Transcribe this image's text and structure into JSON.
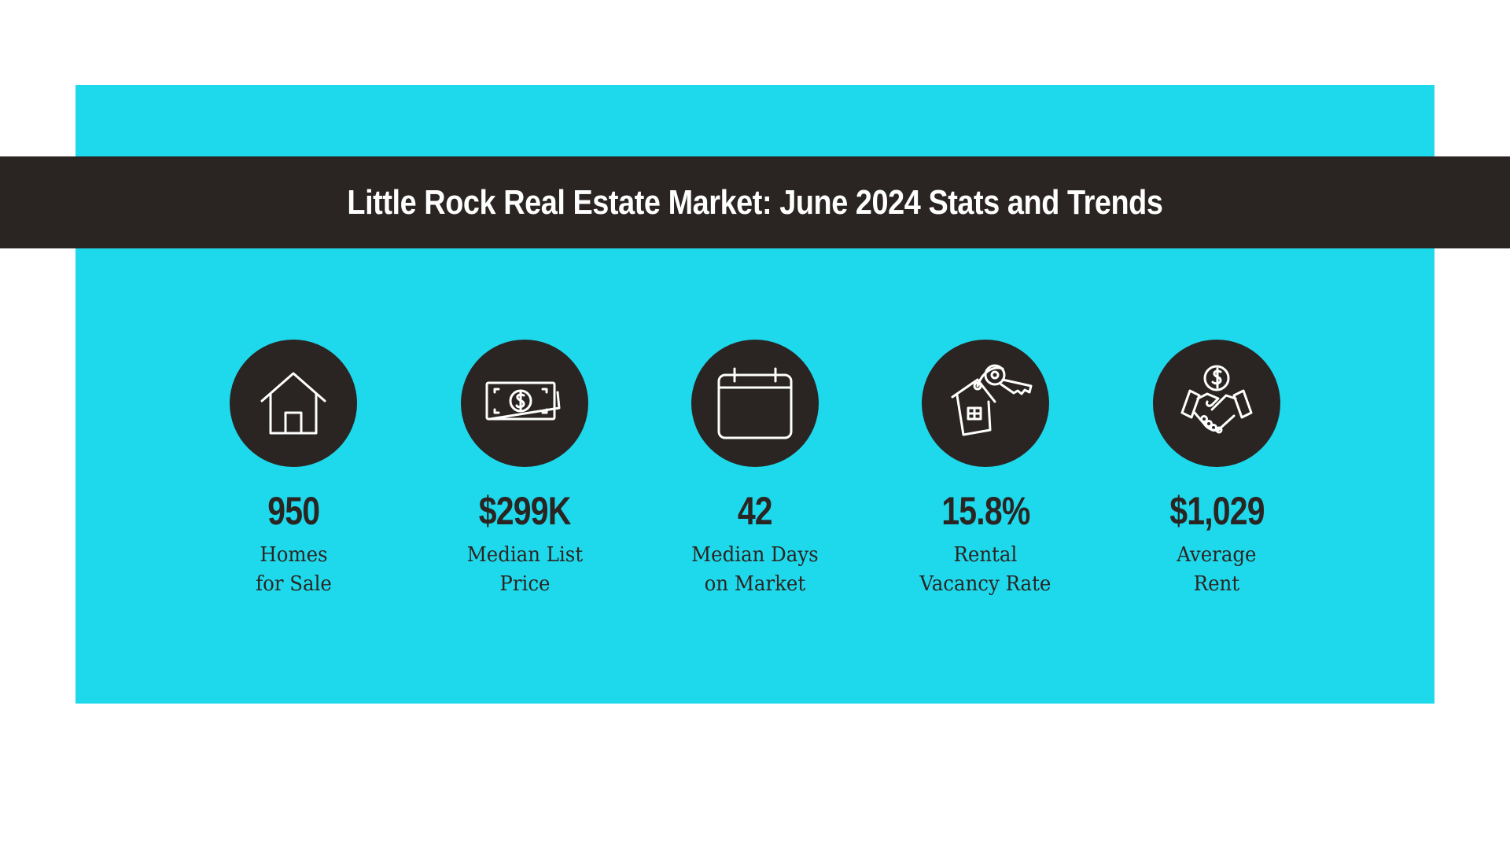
{
  "title": "Little Rock Real Estate Market: June 2024 Stats and Trends",
  "colors": {
    "panel": "#1ed9ec",
    "dark": "#2a2522",
    "white": "#ffffff"
  },
  "stats": [
    {
      "icon": "house-icon",
      "value": "950",
      "label_line1": "Homes",
      "label_line2": "for Sale"
    },
    {
      "icon": "money-bill-icon",
      "value": "$299K",
      "label_line1": "Median List",
      "label_line2": "Price"
    },
    {
      "icon": "calendar-icon",
      "value": "42",
      "label_line1": "Median Days",
      "label_line2": "on Market"
    },
    {
      "icon": "house-key-icon",
      "value": "15.8%",
      "label_line1": "Rental",
      "label_line2": "Vacancy Rate"
    },
    {
      "icon": "handshake-dollar-icon",
      "value": "$1,029",
      "label_line1": "Average",
      "label_line2": "Rent"
    }
  ]
}
